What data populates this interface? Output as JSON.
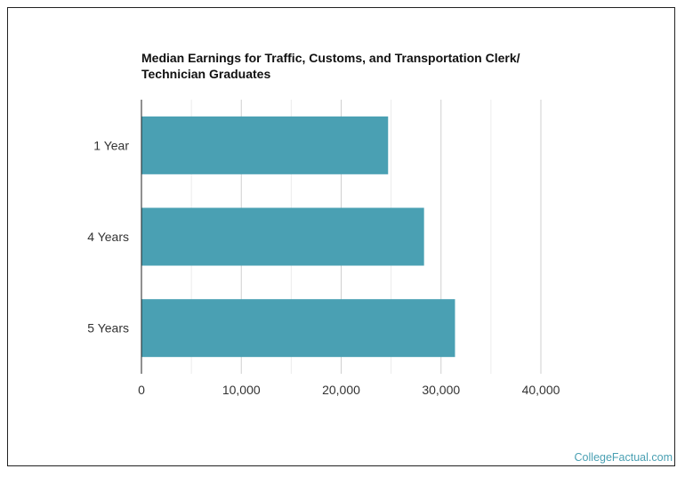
{
  "chart_data": {
    "type": "bar",
    "orientation": "horizontal",
    "title_lines": [
      "Median Earnings for Traffic, Customs, and Transportation Clerk/",
      "Technician Graduates"
    ],
    "categories": [
      "1 Year",
      "4 Years",
      "5 Years"
    ],
    "values": [
      24700,
      28300,
      31400
    ],
    "xlim": [
      0,
      40000
    ],
    "xticks": [
      0,
      10000,
      20000,
      30000,
      40000
    ],
    "xtick_labels": [
      "0",
      "10,000",
      "20,000",
      "30,000",
      "40,000"
    ],
    "bar_color": "#4aa0b3",
    "grid": true
  },
  "credit": "CollegeFactual.com"
}
